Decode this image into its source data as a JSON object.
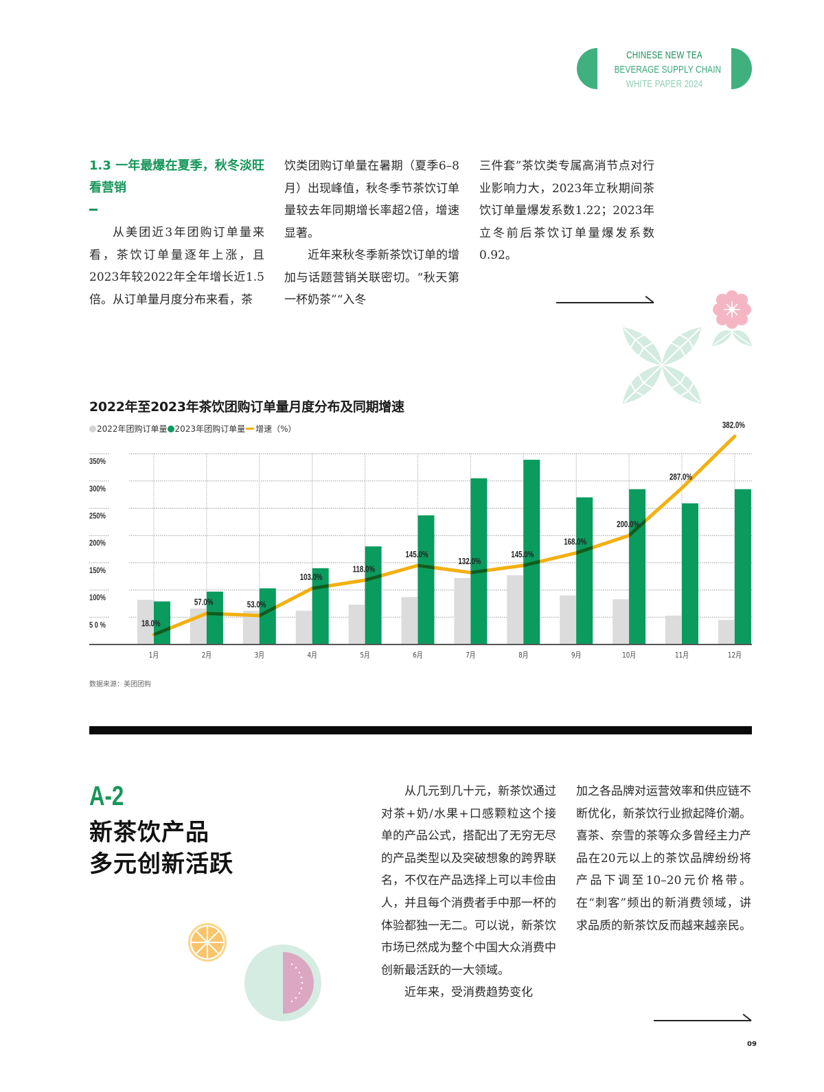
{
  "header": {
    "badge_lines": [
      "CHINESE NEW TEA",
      "BEVERAGE SUPPLY CHAIN",
      "WHITE PAPER 2024"
    ],
    "badge_color": "#3fb07e"
  },
  "section_1_3": {
    "title": "1.3 一年最爆在夏季，秋冬淡旺看营销",
    "columns": [
      [
        "从美团近3年团购订单量来看，茶饮订单量逐年上涨，且2023年较2022年全年增长近1.5倍。从订单量月度分布来看，茶"
      ],
      [
        "饮类团购订单量在暑期（夏季6–8月）出现峰值，秋冬季节茶饮订单量较去年同期增长率超2倍，增速显著。",
        "近年来秋冬季新茶饮订单的增加与话题营销关联密切。“秋天第一杯奶茶”“入冬"
      ],
      [
        "三件套”茶饮类专属高消节点对行业影响力大，2023年立秋期间茶饮订单量爆发系数1.22；2023年立冬前后茶饮订单量爆发系数0.92。"
      ]
    ]
  },
  "chart": {
    "title": "2022年至2023年茶饮团购订单量月度分布及同期增速",
    "legend": [
      {
        "label": "2022年团购订单量",
        "color": "#d9d9d9",
        "kind": "dot"
      },
      {
        "label": "2023年团购订单量",
        "color": "#0a9b5e",
        "kind": "dot"
      },
      {
        "label": "增速（%）",
        "color": "#f2b011",
        "kind": "line"
      }
    ],
    "source": "数据来源：美团团购"
  },
  "chart_data": {
    "type": "bar",
    "title": "2022年至2023年茶饮团购订单量月度分布及同期增速",
    "xlabel": "",
    "ylabel": "",
    "categories": [
      "1月",
      "2月",
      "3月",
      "4月",
      "5月",
      "6月",
      "7月",
      "8月",
      "9月",
      "10月",
      "11月",
      "12月"
    ],
    "yticks": [
      "5 0 %",
      "100%",
      "150%",
      "200%",
      "250%",
      "300%",
      "350%"
    ],
    "ylim": [
      0,
      350
    ],
    "grid": true,
    "legend_position": "top-left",
    "series": [
      {
        "name": "2022年团购订单量",
        "type": "bar",
        "color": "#d9d9d9",
        "values": [
          82,
          66,
          62,
          62,
          73,
          87,
          122,
          127,
          90,
          83,
          53,
          45
        ]
      },
      {
        "name": "2023年团购订单量",
        "type": "bar",
        "color": "#0a9b5e",
        "values": [
          79,
          97,
          103,
          140,
          180,
          237,
          305,
          339,
          270,
          285,
          259,
          285
        ]
      },
      {
        "name": "增速（%）",
        "type": "line",
        "color": "#f2b011",
        "values": [
          18.0,
          57.0,
          53.0,
          103.0,
          118.0,
          145.0,
          132.0,
          145.0,
          168.0,
          200.0,
          287.0,
          382.0
        ],
        "labels": [
          "18.0%",
          "57.0%",
          "53.0%",
          "103.0%",
          "118.0%",
          "145.0%",
          "132.0%",
          "145.0%",
          "168.0%",
          "200.0%",
          "287.0%",
          "382.0%"
        ]
      }
    ],
    "source": "数据来源：美团团购"
  },
  "section_a2": {
    "code": "A-2",
    "title_lines": [
      "新茶饮产品",
      "多元创新活跃"
    ],
    "col_left": [
      "从几元到几十元，新茶饮通过对茶+奶/水果+口感颗粒这个接单的产品公式，搭配出了无穷无尽的产品类型以及突破想象的跨界联名，不仅在产品选择上可以丰俭由人，并且每个消费者手中那一杯的体验都独一无二。可以说，新茶饮市场已然成为整个中国大众消费中创新最活跃的一大领域。",
      "近年来，受消费趋势变化"
    ],
    "col_right": [
      "加之各品牌对运营效率和供应链不断优化，新茶饮行业掀起降价潮。喜茶、奈雪的茶等众多曾经主力产品在20元以上的茶饮品牌纷纷将产品下调至10–20元价格带。在“刺客”频出的新消费领域，讲求品质的新茶饮反而越来越亲民。"
    ]
  },
  "footer": {
    "page_number": "09"
  }
}
